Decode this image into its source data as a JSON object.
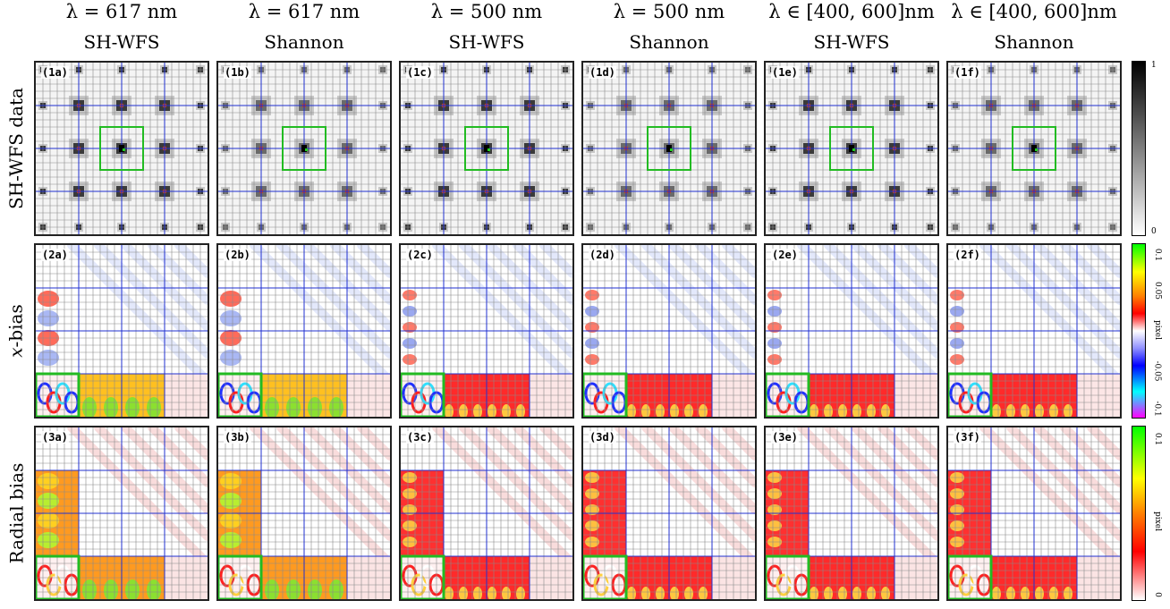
{
  "columns": [
    {
      "lambda": "λ = 617 nm",
      "method": "SH-WFS"
    },
    {
      "lambda": "λ = 617 nm",
      "method": "Shannon"
    },
    {
      "lambda": "λ = 500 nm",
      "method": "SH-WFS"
    },
    {
      "lambda": "λ = 500 nm",
      "method": "Shannon"
    },
    {
      "lambda": "λ ∈ [400, 600]nm",
      "method": "SH-WFS"
    },
    {
      "lambda": "λ ∈ [400, 600]nm",
      "method": "Shannon"
    }
  ],
  "rows": [
    {
      "label": "SH-WFS data",
      "panels": [
        "(1a)",
        "(1b)",
        "(1c)",
        "(1d)",
        "(1e)",
        "(1f)"
      ]
    },
    {
      "label_prefix": "x",
      "label": "-bias",
      "panels": [
        "(2a)",
        "(2b)",
        "(2c)",
        "(2d)",
        "(2e)",
        "(2f)"
      ]
    },
    {
      "label": "Radial bias",
      "panels": [
        "(3a)",
        "(3b)",
        "(3c)",
        "(3d)",
        "(3e)",
        "(3f)"
      ]
    }
  ],
  "colorbars": [
    {
      "ticks": [
        "1",
        "0"
      ],
      "unit": ""
    },
    {
      "ticks": [
        "0.1",
        "0.05",
        "-0.05",
        "-0.1"
      ],
      "unit": "pixel"
    },
    {
      "ticks": [
        "0.1",
        "0"
      ],
      "unit": "pixel"
    }
  ],
  "colors": {
    "grid_fine": "#8a8a8a",
    "grid_major": "#2030d0",
    "highlight_box": "#22bb22",
    "spot_marker": "#d04010"
  }
}
